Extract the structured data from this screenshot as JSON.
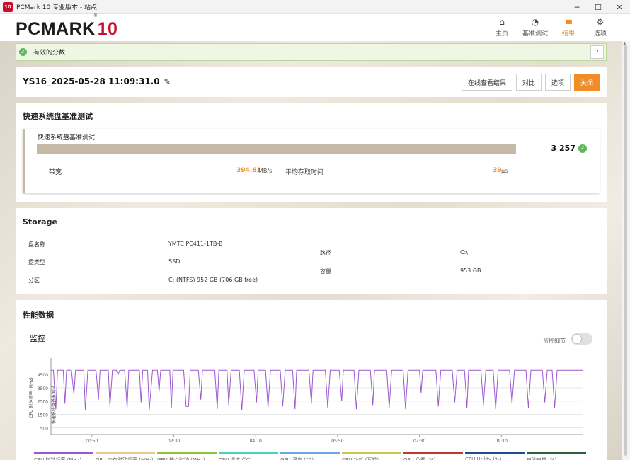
{
  "window": {
    "icon_text": "10",
    "title": "PCMark 10 专业版本 - 站点",
    "min": "─",
    "max": "☐",
    "close": "✕"
  },
  "header": {
    "logo_main": "PCMARK",
    "logo_ten": "10",
    "logo_reg": "®",
    "nav": [
      {
        "label": "主页",
        "icon": "home-icon",
        "glyph": "⌂"
      },
      {
        "label": "基准测试",
        "icon": "gauge-icon",
        "glyph": "◔"
      },
      {
        "label": "结果",
        "icon": "bar-chart-icon",
        "glyph": "▮▮▮"
      },
      {
        "label": "选项",
        "icon": "gear-icon",
        "glyph": "⚙"
      }
    ],
    "active": "结果"
  },
  "valid_score": {
    "text": "有效的分数",
    "help": "?"
  },
  "result": {
    "title": "YS16_2025-05-28 11:09:31.0",
    "edit_glyph": "✎",
    "buttons": {
      "view_online": "在线查看结果",
      "compare": "对比",
      "options": "选项",
      "close": "关闭"
    }
  },
  "quick_storage": {
    "section_title": "快速系统盘基准测试",
    "card_title": "快速系统盘基准测试",
    "score": "3 257",
    "score_fill": 1.0,
    "bandwidth_label": "带宽",
    "bandwidth_value": "394.61",
    "bandwidth_unit": "MB/s",
    "access_label": "平均存取时间",
    "access_value": "39",
    "access_unit": "μs"
  },
  "storage": {
    "title": "Storage",
    "rows": {
      "disk_name_label": "盘名称",
      "disk_name": "YMTC PC411-1TB-B",
      "disk_type_label": "盘类型",
      "disk_type": "SSD",
      "partition_label": "分区",
      "partition": "C: (NTFS) 952 GB (706 GB free)",
      "path_label": "路径",
      "path": "C:\\",
      "capacity_label": "容量",
      "capacity": "953 GB"
    }
  },
  "performance": {
    "title": "性能数据",
    "monitor_title": "监控",
    "monitor_detail_label": "监控细节",
    "monitor_detail_on": false
  },
  "chart_data": {
    "type": "line",
    "ylabel": "CPU 时钟频率 (MHz)",
    "band_label": "快速系统盘基准测试",
    "y_ticks": [
      500,
      1500,
      2500,
      3500,
      4500
    ],
    "x_ticks": [
      "00:50",
      "02:30",
      "04:10",
      "05:50",
      "07:30",
      "09:10"
    ],
    "xlim_seconds": [
      0,
      650
    ],
    "ylim": [
      0,
      5500
    ],
    "series": [
      {
        "name": "CPU 时钟频率 (MHz)",
        "color": "#9b59d0",
        "points": [
          [
            0,
            4800
          ],
          [
            3,
            4800
          ],
          [
            6,
            1900
          ],
          [
            8,
            4800
          ],
          [
            15,
            4800
          ],
          [
            17,
            2300
          ],
          [
            19,
            4800
          ],
          [
            25,
            4800
          ],
          [
            28,
            3000
          ],
          [
            30,
            4800
          ],
          [
            40,
            4800
          ],
          [
            42,
            1800
          ],
          [
            45,
            4800
          ],
          [
            55,
            4800
          ],
          [
            58,
            2600
          ],
          [
            60,
            4800
          ],
          [
            70,
            4800
          ],
          [
            72,
            2100
          ],
          [
            75,
            4800
          ],
          [
            80,
            4800
          ],
          [
            82,
            4500
          ],
          [
            84,
            4800
          ],
          [
            90,
            4800
          ],
          [
            93,
            2000
          ],
          [
            95,
            4800
          ],
          [
            108,
            4800
          ],
          [
            110,
            2400
          ],
          [
            112,
            4800
          ],
          [
            118,
            4800
          ],
          [
            120,
            1800
          ],
          [
            124,
            4800
          ],
          [
            130,
            4800
          ],
          [
            132,
            3200
          ],
          [
            134,
            4800
          ],
          [
            145,
            4800
          ],
          [
            147,
            2000
          ],
          [
            149,
            4800
          ],
          [
            160,
            4800
          ],
          [
            162,
            4800
          ],
          [
            165,
            2100
          ],
          [
            168,
            2100
          ],
          [
            170,
            4800
          ],
          [
            180,
            4800
          ],
          [
            183,
            2600
          ],
          [
            185,
            4800
          ],
          [
            200,
            4800
          ],
          [
            203,
            1900
          ],
          [
            205,
            4800
          ],
          [
            215,
            4800
          ],
          [
            217,
            2200
          ],
          [
            220,
            4800
          ],
          [
            230,
            4800
          ],
          [
            233,
            1800
          ],
          [
            236,
            4800
          ],
          [
            248,
            4800
          ],
          [
            251,
            2400
          ],
          [
            253,
            4800
          ],
          [
            262,
            4800
          ],
          [
            265,
            2000
          ],
          [
            268,
            4800
          ],
          [
            280,
            4800
          ],
          [
            283,
            2100
          ],
          [
            286,
            4800
          ],
          [
            295,
            4800
          ],
          [
            298,
            1900
          ],
          [
            300,
            4800
          ],
          [
            315,
            4800
          ],
          [
            318,
            2300
          ],
          [
            320,
            4800
          ],
          [
            335,
            4800
          ],
          [
            338,
            2000
          ],
          [
            341,
            4800
          ],
          [
            352,
            4800
          ],
          [
            355,
            2500
          ],
          [
            357,
            4800
          ],
          [
            370,
            4800
          ],
          [
            373,
            1900
          ],
          [
            376,
            4800
          ],
          [
            390,
            4800
          ],
          [
            393,
            2200
          ],
          [
            395,
            4800
          ],
          [
            410,
            4800
          ],
          [
            413,
            2000
          ],
          [
            416,
            4800
          ],
          [
            430,
            4800
          ],
          [
            433,
            1900
          ],
          [
            436,
            4800
          ],
          [
            450,
            4800
          ],
          [
            452,
            3100
          ],
          [
            454,
            4800
          ],
          [
            470,
            4800
          ],
          [
            473,
            2100
          ],
          [
            476,
            4800
          ],
          [
            490,
            4800
          ],
          [
            493,
            2400
          ],
          [
            496,
            4800
          ],
          [
            505,
            4800
          ],
          [
            508,
            2000
          ],
          [
            510,
            4800
          ],
          [
            525,
            4800
          ],
          [
            528,
            2200
          ],
          [
            531,
            4800
          ],
          [
            540,
            4800
          ],
          [
            543,
            1900
          ],
          [
            546,
            4800
          ],
          [
            560,
            4800
          ],
          [
            563,
            2300
          ],
          [
            566,
            4800
          ],
          [
            580,
            4800
          ],
          [
            583,
            2000
          ],
          [
            586,
            4800
          ],
          [
            600,
            4800
          ],
          [
            603,
            2400
          ],
          [
            606,
            4800
          ],
          [
            612,
            4800
          ],
          [
            615,
            2000
          ],
          [
            618,
            4800
          ],
          [
            640,
            4800
          ],
          [
            650,
            4800
          ]
        ]
      }
    ],
    "legend": [
      {
        "label": "CPU 时钟频率 (MHz)",
        "color": "#9b59d0"
      },
      {
        "label": "GPU 内存时钟频率 (MHz)",
        "color": "#e8c98a"
      },
      {
        "label": "GPU 核心时钟 (MHz)",
        "color": "#8fc43a"
      },
      {
        "label": "CPU 温度 (°C)",
        "color": "#45d4b5"
      },
      {
        "label": "GPU 温度 (°C)",
        "color": "#6ba8e0"
      },
      {
        "label": "CPU 功耗 (瓦特)",
        "color": "#c8c84a"
      },
      {
        "label": "GPU 负载 (%)",
        "color": "#c0392b"
      },
      {
        "label": "CPU Utility (%)",
        "color": "#1d4e89"
      },
      {
        "label": "电池电量 (%)",
        "color": "#2e5e3a"
      }
    ]
  }
}
